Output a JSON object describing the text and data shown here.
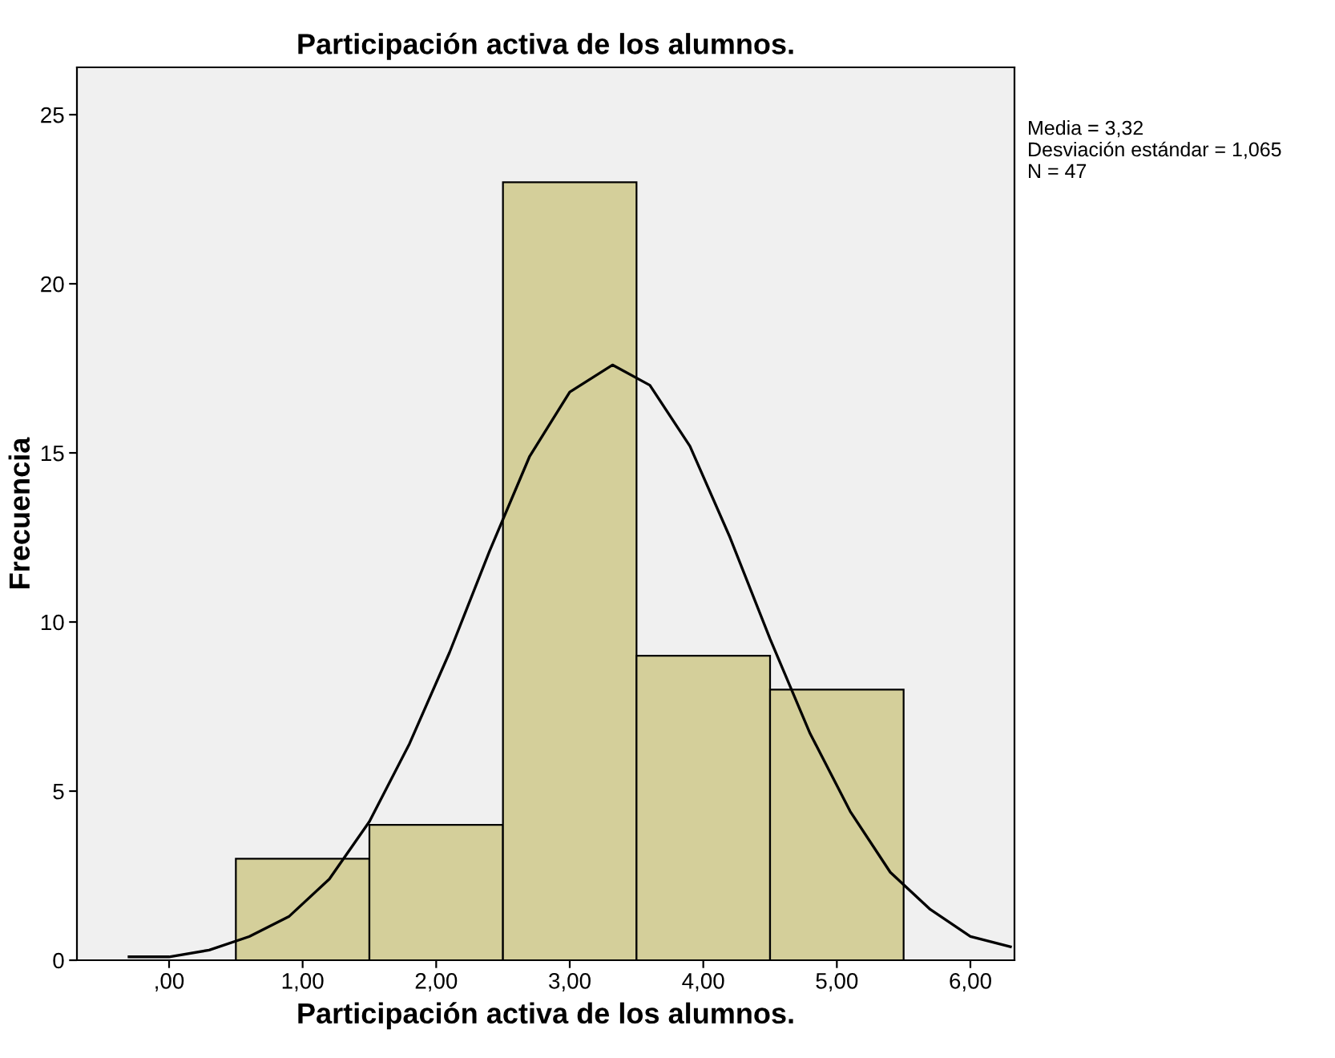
{
  "chart_data": {
    "type": "histogram",
    "title": "Participación activa de los alumnos.",
    "xlabel": "Participación activa de los alumnos.",
    "ylabel": "Frecuencia",
    "bins": [
      0.5,
      1.5,
      2.5,
      3.5,
      4.5,
      5.5
    ],
    "values": [
      3,
      4,
      23,
      9,
      8
    ],
    "color": "#d4cf9a",
    "series": [
      {
        "type": "line",
        "color": "#000000",
        "x": [
          -0.3,
          0.0,
          0.3,
          0.6,
          0.9,
          1.2,
          1.5,
          1.8,
          2.1,
          2.4,
          2.7,
          3.0,
          3.32,
          3.6,
          3.9,
          4.2,
          4.5,
          4.8,
          5.1,
          5.4,
          5.7,
          6.0,
          6.3
        ],
        "values": [
          0.1,
          0.1,
          0.3,
          0.7,
          1.3,
          2.4,
          4.1,
          6.4,
          9.1,
          12.1,
          14.9,
          16.8,
          17.6,
          17.0,
          15.2,
          12.5,
          9.5,
          6.7,
          4.4,
          2.6,
          1.5,
          0.7,
          0.4
        ]
      }
    ],
    "xlim": [
      -0.69,
      6.33
    ],
    "ylim": [
      0,
      26.4
    ],
    "xticks": [
      {
        "value": 0,
        "label": ",00"
      },
      {
        "value": 1,
        "label": "1,00"
      },
      {
        "value": 2,
        "label": "2,00"
      },
      {
        "value": 3,
        "label": "3,00"
      },
      {
        "value": 4,
        "label": "4,00"
      },
      {
        "value": 5,
        "label": "5,00"
      },
      {
        "value": 6,
        "label": "6,00"
      }
    ],
    "yticks": [
      0,
      5,
      10,
      15,
      20,
      25
    ],
    "annotations": [
      "Media = 3,32\nDesviación estándar = 1,065\nN = 47"
    ],
    "grid": false,
    "legend": false
  }
}
